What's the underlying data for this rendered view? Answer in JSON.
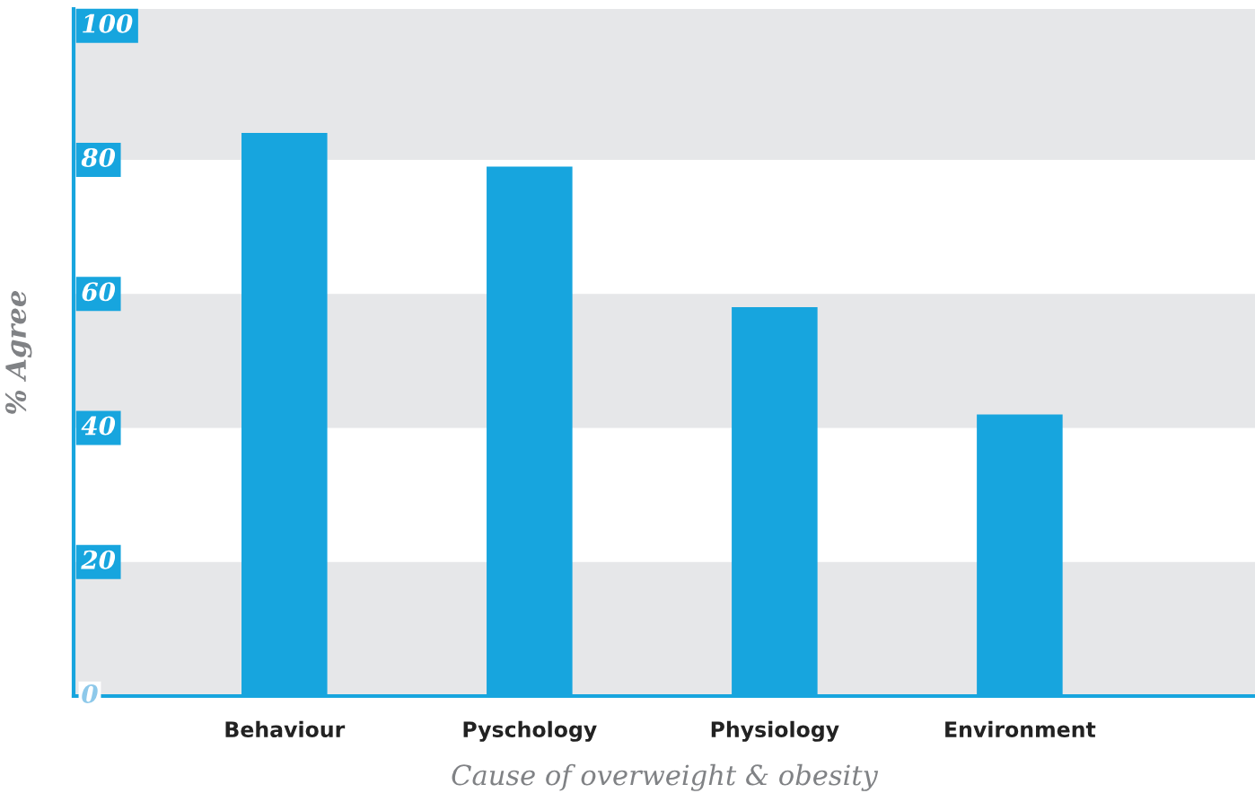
{
  "chart_data": {
    "type": "bar",
    "xlabel": "Cause of overweight & obesity",
    "ylabel": "% Agree",
    "categories": [
      "Behaviour",
      "Pyschology",
      "Physiology",
      "Environment"
    ],
    "values": [
      84,
      79,
      58,
      42
    ],
    "color": "#17a5de",
    "ylim": [
      0,
      102.5
    ],
    "yticks": [
      0,
      20,
      40,
      60,
      80,
      100
    ],
    "grid": false,
    "bands": [
      {
        "axis": "y",
        "from": 0,
        "to": 20,
        "color": "#e6e7e9"
      },
      {
        "axis": "y",
        "from": 40,
        "to": 60,
        "color": "#e6e7e9"
      },
      {
        "axis": "y",
        "from": 80,
        "to": 102.5,
        "color": "#e6e7e9"
      }
    ]
  }
}
